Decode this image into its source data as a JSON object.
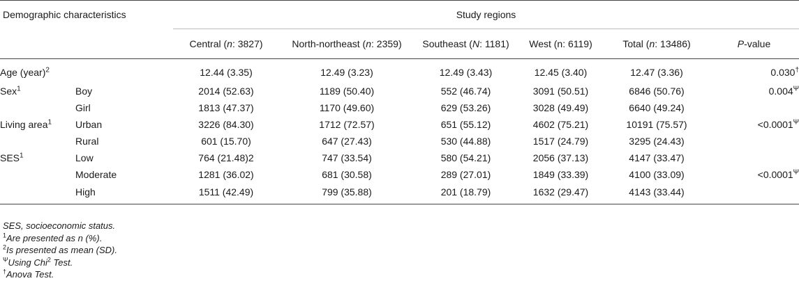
{
  "header": {
    "demographic": "Demographic characteristics",
    "study_regions": "Study regions",
    "columns": [
      {
        "pre": "Central (",
        "n": "n",
        "post": ": 3827)"
      },
      {
        "pre": "North-northeast (",
        "n": "n",
        "post": ": 2359)"
      },
      {
        "pre": "Southeast (",
        "n": "N",
        "post": ": 1181)"
      },
      {
        "pre": "West (n: 6119)",
        "n": "",
        "post": ""
      },
      {
        "pre": "Total (",
        "n": "n",
        "post": ": 13486)"
      }
    ],
    "pvalue_p": "P",
    "pvalue_rest": "-value"
  },
  "rows": [
    {
      "group": "Age (year)",
      "group_sup": "2",
      "sub": "",
      "vals": [
        "12.44 (3.35)",
        "12.49 (3.23)",
        "12.49 (3.43)",
        "12.45 (3.40)",
        "12.47 (3.36)"
      ],
      "p": "0.030",
      "p_sup": "†"
    },
    {
      "group": "Sex",
      "group_sup": "1",
      "sub": "Boy",
      "vals": [
        "2014 (52.63)",
        "1189 (50.40)",
        "552 (46.74)",
        "3091 (50.51)",
        "6846 (50.76)"
      ],
      "p": "0.004",
      "p_sup": "Ψ"
    },
    {
      "group": "",
      "group_sup": "",
      "sub": "Girl",
      "vals": [
        "1813 (47.37)",
        "1170 (49.60)",
        "629 (53.26)",
        "3028 (49.49)",
        "6640 (49.24)"
      ],
      "p": "",
      "p_sup": ""
    },
    {
      "group": "Living area",
      "group_sup": "1",
      "sub": "Urban",
      "vals": [
        "3226 (84.30)",
        "1712 (72.57)",
        "651 (55.12)",
        "4602 (75.21)",
        "10191 (75.57)"
      ],
      "p": "<0.0001",
      "p_sup": "Ψ"
    },
    {
      "group": "",
      "group_sup": "",
      "sub": "Rural",
      "vals": [
        "601 (15.70)",
        "647 (27.43)",
        "530 (44.88)",
        "1517 (24.79)",
        "3295 (24.43)"
      ],
      "p": "",
      "p_sup": ""
    },
    {
      "group": "SES",
      "group_sup": "1",
      "sub": "Low",
      "vals": [
        "764 (21.48)2",
        "747 (33.54)",
        "580 (54.21)",
        "2056 (37.13)",
        "4147 (33.47)"
      ],
      "p": "",
      "p_sup": ""
    },
    {
      "group": "",
      "group_sup": "",
      "sub": "Moderate",
      "vals": [
        "1281 (36.02)",
        "681 (30.58)",
        "289 (27.01)",
        "1849 (33.39)",
        "4100 (33.09)"
      ],
      "p": "<0.0001",
      "p_sup": "Ψ"
    },
    {
      "group": "",
      "group_sup": "",
      "sub": "High",
      "vals": [
        "1511 (42.49)",
        "799 (35.88)",
        "201 (18.79)",
        "1632 (29.47)",
        "4143 (33.44)"
      ],
      "p": "",
      "p_sup": ""
    }
  ],
  "notes": [
    {
      "sup": "",
      "text": "SES, socioeconomic status.",
      "sup2": "",
      "text2": ""
    },
    {
      "sup": "1",
      "text": "Are presented as n (%).",
      "sup2": "",
      "text2": ""
    },
    {
      "sup": "2",
      "text": "Is presented as mean (SD).",
      "sup2": "",
      "text2": ""
    },
    {
      "sup": "Ψ",
      "text": "Using Chi",
      "sup2": "2",
      "text2": " Test."
    },
    {
      "sup": "†",
      "text": "Anova Test.",
      "sup2": "",
      "text2": ""
    }
  ]
}
